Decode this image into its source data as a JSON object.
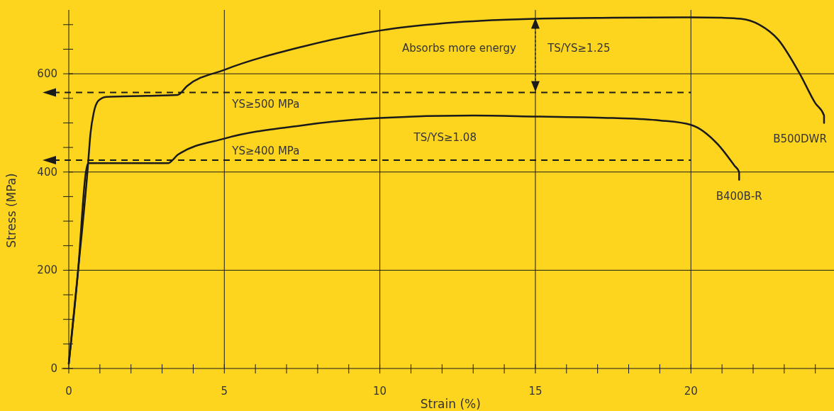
{
  "chart_data": {
    "type": "line",
    "xlabel": "Strain (%)",
    "ylabel": "Stress (MPa)",
    "xlim": [
      0,
      24.6
    ],
    "ylim": [
      0,
      730
    ],
    "xticks": [
      0,
      {
        "value": 1,
        "label": null
      },
      {
        "value": 2,
        "label": null
      },
      {
        "value": 3,
        "label": null
      },
      {
        "value": 4,
        "label": null
      },
      5,
      {
        "value": 6,
        "label": null
      },
      {
        "value": 7,
        "label": null
      },
      {
        "value": 8,
        "label": null
      },
      {
        "value": 9,
        "label": null
      },
      10,
      {
        "value": 11,
        "label": null
      },
      {
        "value": 12,
        "label": null
      },
      {
        "value": 13,
        "label": null
      },
      {
        "value": 14,
        "label": null
      },
      15,
      {
        "value": 16,
        "label": null
      },
      {
        "value": 17,
        "label": null
      },
      {
        "value": 18,
        "label": null
      },
      {
        "value": 19,
        "label": null
      },
      20,
      {
        "value": 21,
        "label": null
      },
      {
        "value": 22,
        "label": null
      },
      {
        "value": 23,
        "label": null
      },
      {
        "value": 24,
        "label": null
      }
    ],
    "yticks": [
      0,
      {
        "value": 50,
        "label": null
      },
      {
        "value": 100,
        "label": null
      },
      {
        "value": 150,
        "label": null
      },
      200,
      {
        "value": 250,
        "label": null
      },
      {
        "value": 300,
        "label": null
      },
      {
        "value": 350,
        "label": null
      },
      400,
      {
        "value": 450,
        "label": null
      },
      {
        "value": 500,
        "label": null
      },
      {
        "value": 550,
        "label": null
      },
      600,
      {
        "value": 650,
        "label": null
      },
      {
        "value": 700,
        "label": null
      }
    ],
    "grid": true,
    "marker": "none",
    "line_style": "solid",
    "series": [
      {
        "name": "B500DWR",
        "color": "#1a1a1a",
        "x": [
          0,
          0.3,
          0.6,
          0.7,
          0.8,
          0.95,
          1.2,
          2.5,
          3.5,
          3.8,
          5,
          7.5,
          10,
          12.5,
          15,
          17.5,
          20,
          21,
          21.6,
          22.2,
          22.8,
          23.5,
          24,
          24.28,
          24.28
        ],
        "values": [
          10,
          200,
          400,
          480,
          520,
          545,
          553,
          555,
          557,
          575,
          608,
          655,
          688,
          705,
          712,
          714,
          715,
          714,
          712,
          700,
          670,
          600,
          540,
          515,
          500
        ]
      },
      {
        "name": "B400B-R",
        "color": "#1a1a1a",
        "x": [
          0,
          0.3,
          0.55,
          0.62,
          1.5,
          3.2,
          3.35,
          3.5,
          5,
          7.5,
          10,
          13,
          15,
          17.5,
          19,
          20,
          20.87,
          21.4,
          21.55,
          21.55
        ],
        "values": [
          10,
          200,
          400,
          418,
          418,
          418,
          425,
          435,
          468,
          495,
          510,
          515,
          513,
          510,
          505,
          496,
          456,
          413,
          400,
          384
        ]
      }
    ],
    "ref_lines": [
      {
        "axis": "y",
        "value": 562,
        "label": "YS≥500 MPa",
        "line_style": "dashed"
      },
      {
        "axis": "y",
        "value": 424,
        "label": "YS≥400 MPa",
        "line_style": "dashed"
      }
    ],
    "annotations": [
      "Absorbs more energy",
      "TS/YS≥1.25",
      "TS/YS≥1.08"
    ]
  }
}
